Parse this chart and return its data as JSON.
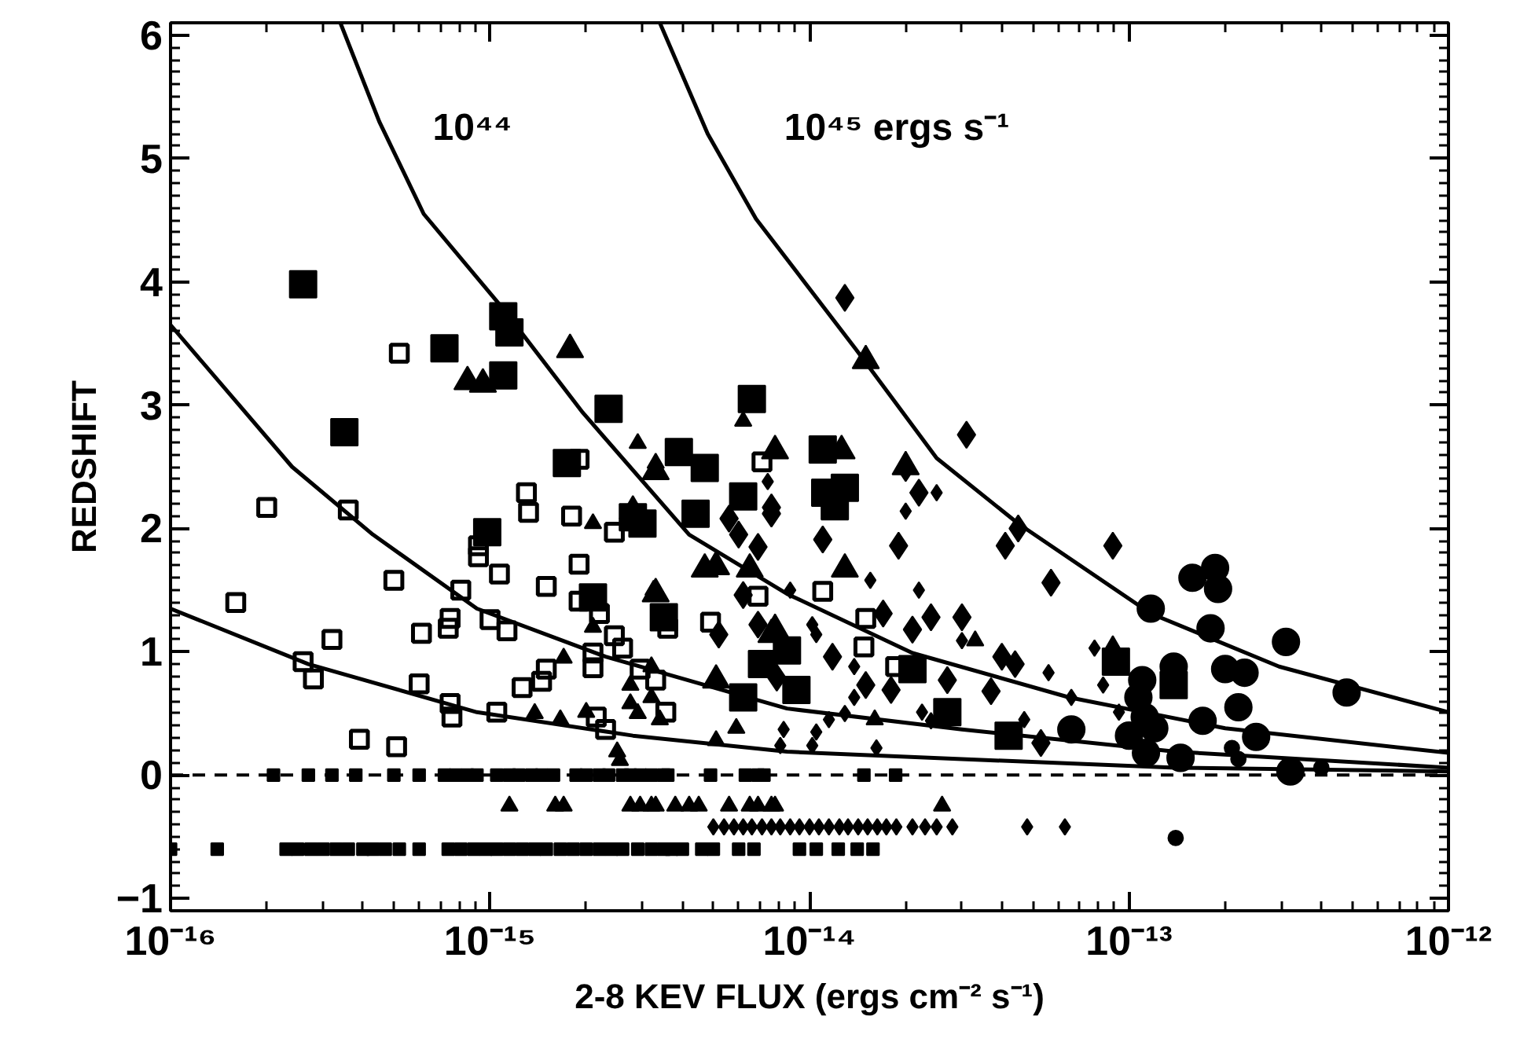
{
  "chart_data": {
    "type": "bubble",
    "xlabel": "2-8 KEV FLUX (ergs cm⁻² s⁻¹)",
    "ylabel": "REDSHIFT",
    "log": "x",
    "xlim": [
      1e-16,
      1e-12
    ],
    "ylim": [
      -1.1,
      6.1
    ],
    "xticks": [
      {
        "value": 1e-16,
        "label": "10⁻¹⁶"
      },
      {
        "value": 1e-15,
        "label": "10⁻¹⁵"
      },
      {
        "value": 1e-14,
        "label": "10⁻¹⁴"
      },
      {
        "value": 1e-13,
        "label": "10⁻¹³"
      },
      {
        "value": 1e-12,
        "label": "10⁻¹²"
      }
    ],
    "yticks": [
      -1,
      0,
      1,
      2,
      3,
      4,
      5,
      6
    ],
    "grid": false,
    "ref_lines": [
      {
        "axis": "y",
        "value": 0,
        "line_style": "dashed",
        "color": "#000000"
      }
    ],
    "annotations": [
      "10⁴⁴",
      "10⁴⁵ ergs s⁻¹"
    ],
    "series": [
      {
        "marker": "square_open",
        "color": "#000000",
        "x": [
          1.6e-16,
          2e-16,
          3.6e-16,
          2.6e-16,
          2.8e-16,
          3.2e-16,
          3.9e-16,
          5.1e-16,
          5e-16,
          5.2e-16,
          6.1e-16,
          6e-16,
          7.5e-16,
          7.4e-16,
          7.5e-16,
          7.6e-16,
          8.1e-16,
          9.2e-16,
          9.2e-16,
          1e-15,
          1.07e-15,
          1.13e-15,
          1.05e-15,
          1.26e-15,
          1.3e-15,
          1.32e-15,
          1.45e-15,
          1.5e-15,
          1.5e-15,
          1.8e-15,
          1.9e-15,
          1.9e-15,
          2.2e-15,
          2.1e-15,
          2.1e-15,
          2.15e-15,
          2.3e-15,
          2.45e-15,
          2.45e-15,
          2.6e-15,
          2.95e-15,
          3.3e-15,
          3.55e-15,
          3.6e-15,
          1.9e-15,
          4.9e-15,
          7.1e-15,
          6.9e-15,
          1.1e-14,
          1.5e-14,
          1.48e-14,
          1.86e-14
        ],
        "values": [
          1.4,
          2.17,
          2.15,
          0.92,
          0.78,
          1.1,
          0.29,
          0.23,
          1.58,
          3.42,
          1.15,
          0.74,
          1.27,
          1.19,
          0.58,
          0.47,
          1.5,
          1.86,
          1.77,
          1.26,
          1.63,
          1.17,
          0.51,
          0.71,
          2.29,
          2.13,
          0.76,
          0.86,
          1.53,
          2.1,
          1.71,
          1.41,
          1.31,
          0.99,
          0.87,
          0.47,
          0.37,
          1.97,
          1.13,
          1.03,
          0.86,
          0.77,
          0.51,
          1.19,
          2.56,
          1.24,
          2.54,
          1.45,
          1.49,
          1.27,
          1.04,
          0.88
        ],
        "sizes": [
          0.4,
          0.4,
          0.4,
          0.4,
          0.4,
          0.4,
          0.4,
          0.4,
          0.4,
          0.4,
          0.4,
          0.4,
          0.4,
          0.4,
          0.4,
          0.4,
          0.4,
          0.4,
          0.4,
          0.4,
          0.4,
          0.4,
          0.4,
          0.4,
          0.4,
          0.4,
          0.4,
          0.4,
          0.4,
          0.4,
          0.4,
          0.4,
          0.4,
          0.4,
          0.4,
          0.4,
          0.4,
          0.4,
          0.4,
          0.4,
          0.4,
          0.4,
          0.4,
          0.4,
          0.4,
          0.4,
          0.4,
          0.4,
          0.4,
          0.4,
          0.4,
          0.4
        ]
      },
      {
        "marker": "square",
        "color": "#000000",
        "x": [
          2.6e-16,
          3.5e-16,
          7.2e-16,
          1.1e-15,
          1.15e-15,
          1.1e-15,
          2.35e-15,
          1.74e-15,
          3.9e-15,
          6.6e-15,
          4.7e-15,
          9.8e-16,
          2.8e-15,
          3e-15,
          4.4e-15,
          6.2e-15,
          2.1e-15,
          3.5e-15,
          6.2e-15,
          7.1e-15,
          1.12e-14,
          1.29e-14,
          1.2e-14,
          9.1e-15,
          8.5e-15,
          2.1e-14,
          2.7e-14,
          4.2e-14,
          9.1e-14,
          1.38e-13,
          1.1e-14
        ],
        "values": [
          3.98,
          2.78,
          3.46,
          3.72,
          3.59,
          3.24,
          2.97,
          2.53,
          2.62,
          3.05,
          2.49,
          1.97,
          2.09,
          2.04,
          2.12,
          2.26,
          1.44,
          1.28,
          0.63,
          0.9,
          2.29,
          2.33,
          2.18,
          0.69,
          1.01,
          0.86,
          0.51,
          0.32,
          0.92,
          0.73,
          2.64
        ],
        "sizes": [
          1,
          1,
          1,
          1,
          1,
          1,
          1,
          1,
          1,
          1,
          1,
          1,
          1,
          1,
          1,
          1,
          1,
          1,
          1,
          1,
          1,
          1,
          1,
          1,
          1,
          1,
          1,
          1,
          1,
          1,
          1
        ]
      },
      {
        "marker": "square",
        "color": "#000000",
        "x": [
          2.1e-16,
          2.7e-16,
          3.2e-16,
          3.8e-16,
          5e-16,
          6e-16,
          7.2e-16,
          7.8e-16,
          8.5e-16,
          9.1e-16,
          1.05e-15,
          1.15e-15,
          1.23e-15,
          1.35e-15,
          1.45e-15,
          1.58e-15,
          1.86e-15,
          2e-15,
          2.2e-15,
          2.35e-15,
          2.6e-15,
          2.75e-15,
          2.95e-15,
          3.2e-15,
          3.5e-15,
          3.6e-15,
          4.9e-15,
          6.3e-15,
          6.9e-15,
          7.2e-15,
          1.48e-14,
          1.86e-14,
          1e-16,
          1.4e-16,
          2.3e-16,
          2.5e-16,
          2.75e-16,
          3e-16,
          3.3e-16,
          3.6e-16,
          4e-16,
          4.3e-16,
          4.7e-16,
          5.2e-16,
          6e-16,
          7.4e-16,
          8.1e-16,
          8.9e-16,
          9.7e-16,
          1.05e-15,
          1.15e-15,
          1.26e-15,
          1.38e-15,
          1.5e-15,
          1.66e-15,
          1.82e-15,
          2e-15,
          2.2e-15,
          2.4e-15,
          2.6e-15,
          2.9e-15,
          3.2e-15,
          3.5e-15,
          3.7e-15,
          4e-15,
          4.6e-15,
          5e-15,
          6e-15,
          6.7e-15,
          9.3e-15,
          1.05e-14,
          1.23e-14,
          1.41e-14,
          1.58e-14
        ],
        "values": [
          0,
          0,
          0,
          0,
          0,
          0,
          0,
          0,
          0,
          0,
          0,
          0,
          0,
          0,
          0,
          0,
          0,
          0,
          0,
          0,
          0,
          0,
          0,
          0,
          0,
          0,
          0,
          0,
          0,
          0,
          0,
          0,
          -0.6,
          -0.6,
          -0.6,
          -0.6,
          -0.6,
          -0.6,
          -0.6,
          -0.6,
          -0.6,
          -0.6,
          -0.6,
          -0.6,
          -0.6,
          -0.6,
          -0.6,
          -0.6,
          -0.6,
          -0.6,
          -0.6,
          -0.6,
          -0.6,
          -0.6,
          -0.6,
          -0.6,
          -0.6,
          -0.6,
          -0.6,
          -0.6,
          -0.6,
          -0.6,
          -0.6,
          -0.6,
          -0.6,
          -0.6,
          -0.6,
          -0.6,
          -0.6,
          -0.6,
          -0.6,
          -0.6,
          -0.6,
          -0.6
        ],
        "sizes": [
          0.2,
          0.2,
          0.2,
          0.2,
          0.2,
          0.2,
          0.2,
          0.2,
          0.2,
          0.2,
          0.2,
          0.2,
          0.2,
          0.2,
          0.2,
          0.2,
          0.2,
          0.2,
          0.2,
          0.2,
          0.2,
          0.2,
          0.2,
          0.2,
          0.2,
          0.2,
          0.2,
          0.2,
          0.2,
          0.2,
          0.2,
          0.2,
          0.2,
          0.2,
          0.2,
          0.2,
          0.2,
          0.2,
          0.2,
          0.2,
          0.2,
          0.2,
          0.2,
          0.2,
          0.2,
          0.2,
          0.2,
          0.2,
          0.2,
          0.2,
          0.2,
          0.2,
          0.2,
          0.2,
          0.2,
          0.2,
          0.2,
          0.2,
          0.2,
          0.2,
          0.2,
          0.2,
          0.2,
          0.2,
          0.2,
          0.2,
          0.2,
          0.2,
          0.2,
          0.2,
          0.2,
          0.2,
          0.2,
          0.2
        ]
      },
      {
        "marker": "triangle",
        "color": "#000000",
        "x": [
          8.5e-16,
          9.5e-16,
          1.78e-15,
          7.8e-15,
          1.5e-14,
          1.26e-14,
          2e-14,
          3.3e-15,
          2.8e-15,
          4.7e-15,
          5.1e-15,
          3.3e-15,
          5.1e-15,
          6.5e-15,
          7.8e-15,
          1.29e-14,
          7.6e-15
        ],
        "values": [
          3.19,
          3.17,
          3.45,
          2.63,
          3.36,
          2.63,
          2.5,
          2.46,
          2.14,
          1.67,
          1.69,
          1.47,
          0.77,
          1.67,
          1.18,
          1.67,
          1.14
        ],
        "sizes": [
          0.43,
          0.43,
          0.43,
          0.43,
          0.43,
          0.43,
          0.43,
          0.43,
          0.43,
          0.43,
          0.43,
          0.43,
          0.43,
          0.43,
          0.43,
          0.43,
          0.43
        ]
      },
      {
        "marker": "triangle",
        "color": "#000000",
        "x": [
          2.1e-15,
          2.1e-15,
          1.7e-15,
          1.38e-15,
          1.66e-15,
          2e-15,
          2.75e-15,
          2.75e-15,
          3.2e-15,
          2.9e-15,
          3.4e-15,
          2.5e-15,
          2.55e-15,
          3.2e-15,
          5.9e-15,
          5.1e-15,
          3.25e-15,
          1.6e-14,
          8.9e-14,
          3.3e-14,
          6.2e-15,
          2.9e-15,
          3.3e-15,
          1.15e-15,
          1.6e-15,
          1.7e-15,
          2.75e-15,
          2.95e-15,
          3.2e-15,
          3.3e-15,
          3.8e-15,
          4.2e-15,
          4.5e-15,
          5.6e-15,
          6.5e-15,
          6.9e-15,
          7.6e-15,
          7.8e-15,
          2.6e-14
        ],
        "values": [
          2.04,
          1.2,
          0.95,
          0.5,
          0.45,
          0.51,
          0.73,
          0.58,
          0.63,
          0.5,
          0.45,
          0.19,
          0.12,
          0.88,
          0.38,
          0.28,
          1.5,
          0.45,
          1.05,
          1.09,
          2.87,
          2.69,
          2.53,
          -0.25,
          -0.25,
          -0.25,
          -0.25,
          -0.25,
          -0.25,
          -0.25,
          -0.25,
          -0.25,
          -0.25,
          -0.25,
          -0.25,
          -0.25,
          -0.25,
          -0.25,
          -0.25
        ],
        "sizes": [
          0.17,
          0.17,
          0.17,
          0.17,
          0.17,
          0.17,
          0.17,
          0.17,
          0.17,
          0.17,
          0.17,
          0.17,
          0.17,
          0.17,
          0.17,
          0.17,
          0.17,
          0.17,
          0.17,
          0.17,
          0.17,
          0.17,
          0.17,
          0.17,
          0.17,
          0.17,
          0.17,
          0.17,
          0.17,
          0.17,
          0.17,
          0.17,
          0.17,
          0.17,
          0.17,
          0.17,
          0.17,
          0.17,
          0.17
        ]
      },
      {
        "marker": "diamond",
        "color": "#000000",
        "x": [
          1.29e-14,
          3.1e-14,
          2e-14,
          2.2e-14,
          7.6e-15,
          1.1e-14,
          1.9e-14,
          4.1e-14,
          4.5e-14,
          8.9e-14,
          5.7e-14,
          3e-14,
          2.4e-14,
          2.1e-14,
          1.7e-14,
          4e-14,
          4.4e-14,
          1.18e-14,
          1.5e-14,
          1.8e-14,
          2.7e-14,
          3.7e-14,
          5.3e-14,
          5.2e-15,
          5.6e-15,
          7.6e-15,
          6e-15,
          6.9e-15,
          6.2e-15,
          6.9e-15,
          7.9e-15
        ],
        "values": [
          3.87,
          2.76,
          2.49,
          2.29,
          2.17,
          1.91,
          1.86,
          1.86,
          2.0,
          1.86,
          1.56,
          1.28,
          1.28,
          1.18,
          1.31,
          0.96,
          0.9,
          0.96,
          0.73,
          0.69,
          0.77,
          0.68,
          0.26,
          1.14,
          2.08,
          2.12,
          1.95,
          1.85,
          1.46,
          1.22,
          0.79
        ],
        "sizes": [
          0.33,
          0.33,
          0.33,
          0.33,
          0.33,
          0.33,
          0.33,
          0.33,
          0.33,
          0.33,
          0.33,
          0.33,
          0.33,
          0.33,
          0.33,
          0.33,
          0.33,
          0.33,
          0.33,
          0.33,
          0.33,
          0.33,
          0.33,
          0.33,
          0.33,
          0.33,
          0.33,
          0.33,
          0.33,
          0.33,
          0.33
        ]
      },
      {
        "marker": "diamond",
        "color": "#000000",
        "x": [
          7.4e-15,
          2.5e-14,
          2e-14,
          2.2e-14,
          8.7e-15,
          1.55e-14,
          3e-14,
          5.6e-14,
          7.8e-14,
          8.3e-14,
          6.6e-14,
          9.3e-14,
          4.7e-14,
          2.25e-14,
          2.4e-14,
          1.38e-14,
          1.29e-14,
          1.15e-14,
          8.3e-15,
          1.05e-14,
          8.1e-15,
          1.02e-14,
          1.62e-14,
          1.38e-14,
          1.05e-14,
          1.02e-14,
          5e-15,
          5.4e-15,
          5.8e-15,
          6.2e-15,
          6.6e-15,
          7.1e-15,
          7.6e-15,
          8.1e-15,
          8.7e-15,
          9.3e-15,
          1e-14,
          1.07e-14,
          1.15e-14,
          1.24e-14,
          1.32e-14,
          1.42e-14,
          1.52e-14,
          1.63e-14,
          1.74e-14,
          1.87e-14,
          2.1e-14,
          2.3e-14,
          2.5e-14,
          2.8e-14,
          4.8e-14,
          6.3e-14
        ],
        "values": [
          2.38,
          2.29,
          2.14,
          1.5,
          1.5,
          1.58,
          1.09,
          0.83,
          1.03,
          0.73,
          0.63,
          0.51,
          0.45,
          0.51,
          0.44,
          0.63,
          0.5,
          0.45,
          0.37,
          0.35,
          0.24,
          0.24,
          0.22,
          0.88,
          1.14,
          1.22,
          -0.42,
          -0.42,
          -0.42,
          -0.42,
          -0.42,
          -0.42,
          -0.42,
          -0.42,
          -0.42,
          -0.42,
          -0.42,
          -0.42,
          -0.42,
          -0.42,
          -0.42,
          -0.42,
          -0.42,
          -0.42,
          -0.42,
          -0.42,
          -0.42,
          -0.42,
          -0.42,
          -0.42,
          -0.42,
          -0.42
        ],
        "sizes": [
          0.12,
          0.12,
          0.12,
          0.12,
          0.12,
          0.12,
          0.12,
          0.12,
          0.12,
          0.12,
          0.12,
          0.12,
          0.12,
          0.12,
          0.12,
          0.12,
          0.12,
          0.12,
          0.12,
          0.12,
          0.12,
          0.12,
          0.12,
          0.12,
          0.12,
          0.12,
          0.12,
          0.12,
          0.12,
          0.12,
          0.12,
          0.12,
          0.12,
          0.12,
          0.12,
          0.12,
          0.12,
          0.12,
          0.12,
          0.12,
          0.12,
          0.12,
          0.12,
          0.12,
          0.12,
          0.12,
          0.12,
          0.12,
          0.12,
          0.12,
          0.12,
          0.12
        ]
      },
      {
        "marker": "circle",
        "color": "#000000",
        "x": [
          1.17e-13,
          1.58e-13,
          1.86e-13,
          1.9e-13,
          1.8e-13,
          3.1e-13,
          4.8e-13,
          1.38e-13,
          1.1e-13,
          1.07e-13,
          2e-13,
          2.3e-13,
          2.2e-13,
          1.7e-13,
          1.12e-13,
          1.2e-13,
          1e-13,
          2.5e-13,
          6.6e-14,
          1.13e-13,
          1.45e-13,
          3.2e-13
        ],
        "values": [
          1.35,
          1.6,
          1.68,
          1.51,
          1.19,
          1.08,
          0.67,
          0.88,
          0.77,
          0.63,
          0.86,
          0.83,
          0.55,
          0.44,
          0.47,
          0.38,
          0.32,
          0.31,
          0.37,
          0.18,
          0.14,
          0.03
        ],
        "sizes": [
          0.79,
          0.79,
          0.79,
          0.79,
          0.79,
          0.79,
          0.79,
          0.79,
          0.79,
          0.79,
          0.79,
          0.79,
          0.79,
          0.79,
          0.79,
          0.79,
          0.79,
          0.79,
          0.79,
          0.79,
          0.79,
          0.79
        ]
      },
      {
        "marker": "circle",
        "color": "#000000",
        "x": [
          2.1e-13,
          2.2e-13,
          4e-13,
          1.4e-13
        ],
        "values": [
          0.22,
          0.13,
          0.06,
          -0.51
        ],
        "sizes": [
          0.24,
          0.24,
          0.24,
          0.24
        ]
      },
      {
        "type": "line",
        "line_style": "solid",
        "color": "#000000",
        "x": [
          1e-16,
          2.7e-16,
          9.1e-16,
          2.8e-15,
          8.5e-15,
          3e-14,
          1.4e-13,
          1e-12
        ],
        "values": [
          1.35,
          0.9,
          0.51,
          0.32,
          0.19,
          0.13,
          0.06,
          0.03
        ]
      },
      {
        "type": "line",
        "line_style": "solid",
        "color": "#000000",
        "x": [
          1e-16,
          2.4e-16,
          4.3e-16,
          9.1e-16,
          2.3e-15,
          8.5e-15,
          3e-14,
          1.4e-13,
          1e-12
        ],
        "values": [
          3.65,
          2.5,
          1.95,
          1.35,
          0.96,
          0.54,
          0.37,
          0.19,
          0.06
        ]
      },
      {
        "type": "line",
        "line_style": "solid",
        "color": "#000000",
        "x": [
          3.4e-16,
          4.5e-16,
          6.2e-16,
          1.1e-15,
          1.95e-15,
          4.2e-15,
          8.5e-15,
          2.1e-14,
          6.5e-14,
          2e-13,
          1e-12
        ],
        "values": [
          6.1,
          5.3,
          4.55,
          3.78,
          2.94,
          1.95,
          1.47,
          0.99,
          0.63,
          0.38,
          0.18
        ]
      },
      {
        "type": "line",
        "line_style": "solid",
        "color": "#000000",
        "x": [
          3.4e-15,
          4.8e-15,
          6.8e-15,
          1.4e-14,
          2.5e-14,
          4.5e-14,
          1.17e-13,
          2.95e-13,
          1e-12
        ],
        "values": [
          6.1,
          5.2,
          4.51,
          3.45,
          2.57,
          2.04,
          1.31,
          0.88,
          0.51
        ]
      }
    ]
  }
}
